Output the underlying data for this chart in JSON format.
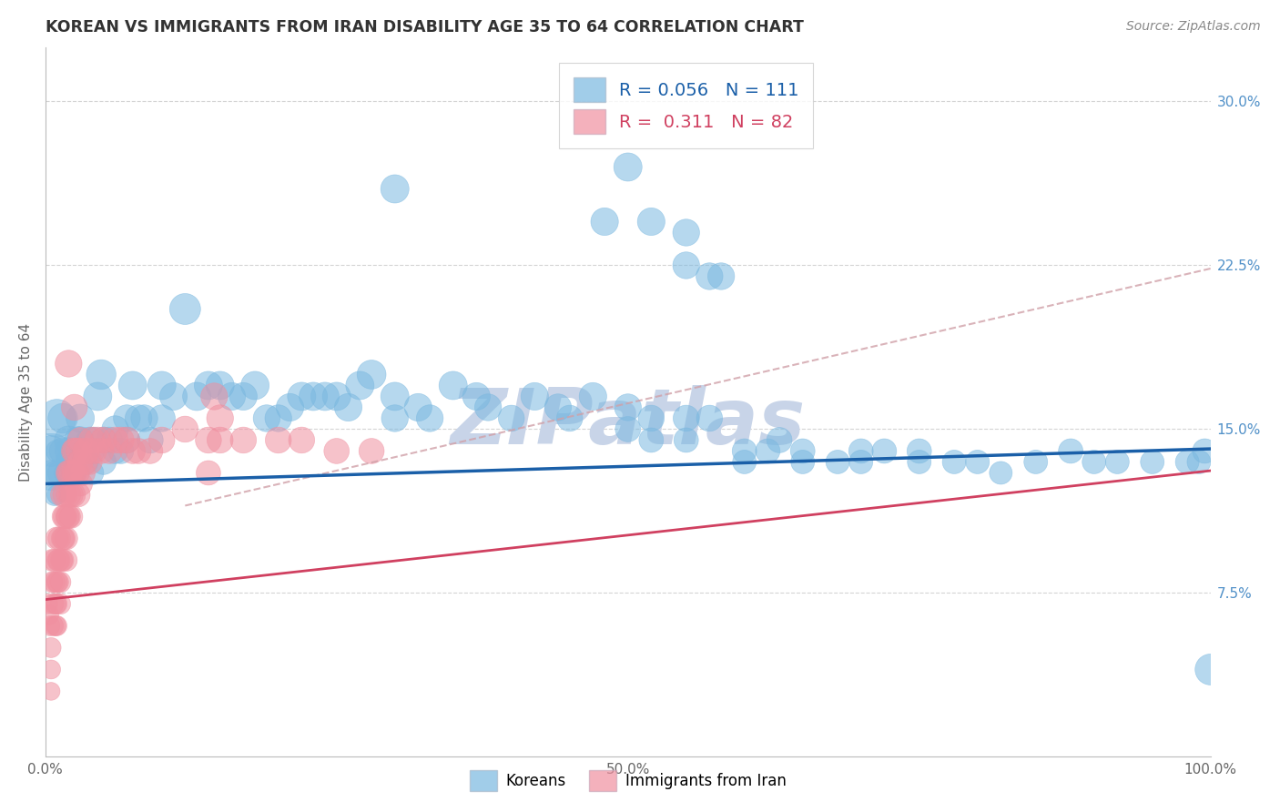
{
  "title": "KOREAN VS IMMIGRANTS FROM IRAN DISABILITY AGE 35 TO 64 CORRELATION CHART",
  "source_text": "Source: ZipAtlas.com",
  "ylabel": "Disability Age 35 to 64",
  "xlim": [
    0,
    1.0
  ],
  "ylim": [
    0,
    0.325
  ],
  "xticks": [
    0,
    0.25,
    0.5,
    0.75,
    1.0
  ],
  "xticklabels": [
    "0.0%",
    "",
    "50.0%",
    "",
    "100.0%"
  ],
  "yticks": [
    0.075,
    0.15,
    0.225,
    0.3
  ],
  "yticklabels": [
    "7.5%",
    "15.0%",
    "22.5%",
    "30.0%"
  ],
  "R_blue": 0.056,
  "N_blue": 111,
  "R_pink": 0.311,
  "N_pink": 82,
  "blue_color": "#7ab8e0",
  "pink_color": "#f090a0",
  "trend_blue_color": "#1a5fa8",
  "trend_pink_color": "#d04060",
  "dash_line_color": "#e8a0a8",
  "grid_color": "#d0d0d0",
  "background_color": "#ffffff",
  "watermark_text": "ZIPatlas",
  "watermark_color": "#c8d4e8",
  "ytick_color": "#5090c8",
  "title_color": "#333333",
  "blue_scatter_x": [
    0.005,
    0.005,
    0.005,
    0.008,
    0.01,
    0.01,
    0.01,
    0.01,
    0.012,
    0.015,
    0.015,
    0.018,
    0.02,
    0.02,
    0.02,
    0.025,
    0.025,
    0.028,
    0.03,
    0.03,
    0.032,
    0.035,
    0.038,
    0.04,
    0.04,
    0.042,
    0.045,
    0.048,
    0.05,
    0.05,
    0.055,
    0.06,
    0.06,
    0.065,
    0.07,
    0.07,
    0.075,
    0.08,
    0.085,
    0.09,
    0.1,
    0.1,
    0.11,
    0.12,
    0.13,
    0.14,
    0.15,
    0.16,
    0.17,
    0.18,
    0.19,
    0.2,
    0.21,
    0.22,
    0.23,
    0.24,
    0.25,
    0.26,
    0.27,
    0.28,
    0.3,
    0.3,
    0.32,
    0.33,
    0.35,
    0.37,
    0.38,
    0.4,
    0.42,
    0.44,
    0.45,
    0.47,
    0.5,
    0.5,
    0.52,
    0.52,
    0.55,
    0.55,
    0.57,
    0.6,
    0.6,
    0.62,
    0.63,
    0.65,
    0.65,
    0.68,
    0.7,
    0.7,
    0.72,
    0.75,
    0.75,
    0.78,
    0.8,
    0.82,
    0.85,
    0.88,
    0.9,
    0.92,
    0.95,
    0.98,
    0.99,
    0.995,
    1.0,
    0.55,
    0.58,
    0.3,
    0.48,
    0.5,
    0.52,
    0.55,
    0.57
  ],
  "blue_scatter_y": [
    0.135,
    0.14,
    0.13,
    0.12,
    0.155,
    0.13,
    0.14,
    0.12,
    0.13,
    0.14,
    0.155,
    0.13,
    0.135,
    0.14,
    0.145,
    0.14,
    0.13,
    0.145,
    0.145,
    0.155,
    0.14,
    0.135,
    0.145,
    0.14,
    0.13,
    0.145,
    0.165,
    0.175,
    0.135,
    0.145,
    0.145,
    0.14,
    0.15,
    0.14,
    0.155,
    0.145,
    0.17,
    0.155,
    0.155,
    0.145,
    0.17,
    0.155,
    0.165,
    0.205,
    0.165,
    0.17,
    0.17,
    0.165,
    0.165,
    0.17,
    0.155,
    0.155,
    0.16,
    0.165,
    0.165,
    0.165,
    0.165,
    0.16,
    0.17,
    0.175,
    0.155,
    0.165,
    0.16,
    0.155,
    0.17,
    0.165,
    0.16,
    0.155,
    0.165,
    0.16,
    0.155,
    0.165,
    0.16,
    0.15,
    0.155,
    0.145,
    0.155,
    0.145,
    0.155,
    0.14,
    0.135,
    0.14,
    0.145,
    0.135,
    0.14,
    0.135,
    0.135,
    0.14,
    0.14,
    0.14,
    0.135,
    0.135,
    0.135,
    0.13,
    0.135,
    0.14,
    0.135,
    0.135,
    0.135,
    0.135,
    0.135,
    0.14,
    0.04,
    0.225,
    0.22,
    0.26,
    0.245,
    0.27,
    0.245,
    0.24,
    0.22
  ],
  "blue_scatter_s": [
    400,
    120,
    80,
    60,
    180,
    80,
    60,
    50,
    70,
    90,
    110,
    70,
    80,
    90,
    100,
    80,
    70,
    90,
    90,
    100,
    80,
    75,
    85,
    80,
    70,
    85,
    100,
    110,
    80,
    85,
    85,
    80,
    90,
    80,
    90,
    85,
    100,
    90,
    90,
    85,
    100,
    90,
    95,
    120,
    100,
    100,
    100,
    95,
    95,
    100,
    90,
    90,
    95,
    100,
    100,
    100,
    100,
    95,
    100,
    105,
    90,
    100,
    95,
    90,
    100,
    95,
    90,
    85,
    95,
    90,
    85,
    95,
    90,
    80,
    85,
    75,
    85,
    75,
    85,
    75,
    70,
    75,
    80,
    70,
    75,
    70,
    70,
    75,
    75,
    75,
    70,
    70,
    70,
    65,
    70,
    75,
    70,
    70,
    70,
    70,
    70,
    75,
    120,
    90,
    90,
    100,
    95,
    100,
    95,
    90,
    90
  ],
  "pink_scatter_x": [
    0.002,
    0.003,
    0.004,
    0.005,
    0.005,
    0.005,
    0.006,
    0.006,
    0.007,
    0.007,
    0.008,
    0.008,
    0.009,
    0.009,
    0.01,
    0.01,
    0.01,
    0.01,
    0.011,
    0.011,
    0.012,
    0.012,
    0.013,
    0.013,
    0.014,
    0.015,
    0.015,
    0.015,
    0.016,
    0.016,
    0.017,
    0.017,
    0.018,
    0.018,
    0.019,
    0.02,
    0.02,
    0.02,
    0.021,
    0.022,
    0.022,
    0.023,
    0.024,
    0.025,
    0.025,
    0.026,
    0.027,
    0.028,
    0.029,
    0.03,
    0.03,
    0.032,
    0.034,
    0.035,
    0.038,
    0.04,
    0.042,
    0.045,
    0.048,
    0.05,
    0.055,
    0.06,
    0.065,
    0.07,
    0.075,
    0.08,
    0.09,
    0.1,
    0.12,
    0.14,
    0.15,
    0.17,
    0.2,
    0.22,
    0.25,
    0.28,
    0.15,
    0.145,
    0.14,
    0.02,
    0.025,
    0.03
  ],
  "pink_scatter_y": [
    0.07,
    0.065,
    0.06,
    0.05,
    0.04,
    0.03,
    0.08,
    0.09,
    0.07,
    0.06,
    0.08,
    0.09,
    0.07,
    0.06,
    0.1,
    0.08,
    0.07,
    0.06,
    0.09,
    0.08,
    0.1,
    0.09,
    0.08,
    0.07,
    0.09,
    0.12,
    0.1,
    0.09,
    0.11,
    0.1,
    0.12,
    0.11,
    0.1,
    0.09,
    0.11,
    0.13,
    0.12,
    0.11,
    0.13,
    0.12,
    0.11,
    0.13,
    0.12,
    0.14,
    0.13,
    0.14,
    0.13,
    0.12,
    0.14,
    0.135,
    0.125,
    0.13,
    0.135,
    0.14,
    0.135,
    0.145,
    0.14,
    0.145,
    0.14,
    0.145,
    0.14,
    0.145,
    0.145,
    0.145,
    0.14,
    0.14,
    0.14,
    0.145,
    0.15,
    0.145,
    0.145,
    0.145,
    0.145,
    0.145,
    0.14,
    0.14,
    0.155,
    0.165,
    0.13,
    0.18,
    0.16,
    0.145
  ],
  "pink_scatter_s": [
    50,
    50,
    50,
    50,
    45,
    40,
    55,
    60,
    52,
    50,
    55,
    60,
    52,
    50,
    65,
    55,
    52,
    50,
    60,
    55,
    65,
    60,
    55,
    52,
    60,
    75,
    65,
    60,
    70,
    65,
    75,
    70,
    65,
    60,
    70,
    80,
    75,
    70,
    80,
    75,
    70,
    80,
    75,
    85,
    80,
    85,
    80,
    75,
    85,
    80,
    75,
    80,
    80,
    85,
    80,
    85,
    80,
    85,
    80,
    85,
    80,
    85,
    85,
    85,
    80,
    80,
    80,
    85,
    85,
    85,
    85,
    85,
    85,
    85,
    80,
    80,
    90,
    90,
    75,
    90,
    85,
    80
  ]
}
